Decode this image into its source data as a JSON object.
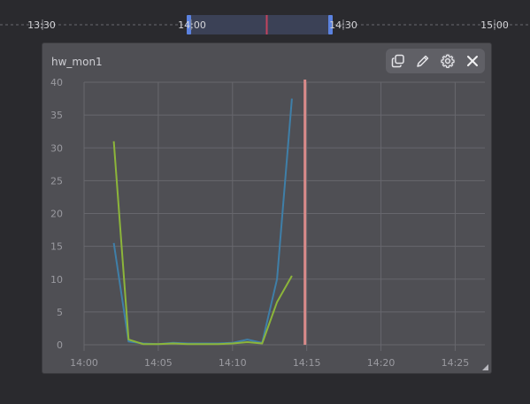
{
  "timeline": {
    "labels": [
      "13:30",
      "14:00",
      "14:30",
      "15:00"
    ],
    "range_start": "14:00",
    "range_end": "14:30",
    "cursor": "14:15",
    "accent_color": "#4f7ad6",
    "cursor_color": "#c2435e"
  },
  "widget": {
    "title": "hw_mon1",
    "toolbar": {
      "copy_icon": "copy-icon",
      "edit_icon": "pencil-icon",
      "settings_icon": "gear-icon",
      "close_icon": "close-icon"
    }
  },
  "chart_data": {
    "type": "line",
    "x_ticks": [
      "14:00",
      "14:05",
      "14:10",
      "14:15",
      "14:20",
      "14:25"
    ],
    "y_ticks": [
      0,
      5,
      10,
      15,
      20,
      25,
      30,
      35,
      40
    ],
    "ylim": [
      0,
      40
    ],
    "xlim": [
      "14:00",
      "14:27"
    ],
    "grid": true,
    "legend": "none",
    "marker_time": "14:15",
    "marker_color": "#d88a8a",
    "series": [
      {
        "color": "#3f7fa8",
        "points": [
          [
            "14:02",
            15.5
          ],
          [
            "14:03",
            0.5
          ],
          [
            "14:04",
            0.2
          ],
          [
            "14:05",
            0.1
          ],
          [
            "14:06",
            0.3
          ],
          [
            "14:07",
            0.2
          ],
          [
            "14:08",
            0.2
          ],
          [
            "14:09",
            0.2
          ],
          [
            "14:10",
            0.3
          ],
          [
            "14:11",
            0.8
          ],
          [
            "14:12",
            0.3
          ],
          [
            "14:13",
            10.0
          ],
          [
            "14:14",
            37.5
          ]
        ]
      },
      {
        "color": "#8cb53a",
        "points": [
          [
            "14:02",
            31.0
          ],
          [
            "14:03",
            0.8
          ],
          [
            "14:04",
            0.1
          ],
          [
            "14:05",
            0.1
          ],
          [
            "14:06",
            0.2
          ],
          [
            "14:07",
            0.1
          ],
          [
            "14:08",
            0.1
          ],
          [
            "14:09",
            0.1
          ],
          [
            "14:10",
            0.2
          ],
          [
            "14:11",
            0.4
          ],
          [
            "14:12",
            0.2
          ],
          [
            "14:13",
            6.5
          ],
          [
            "14:14",
            10.5
          ]
        ]
      }
    ]
  }
}
